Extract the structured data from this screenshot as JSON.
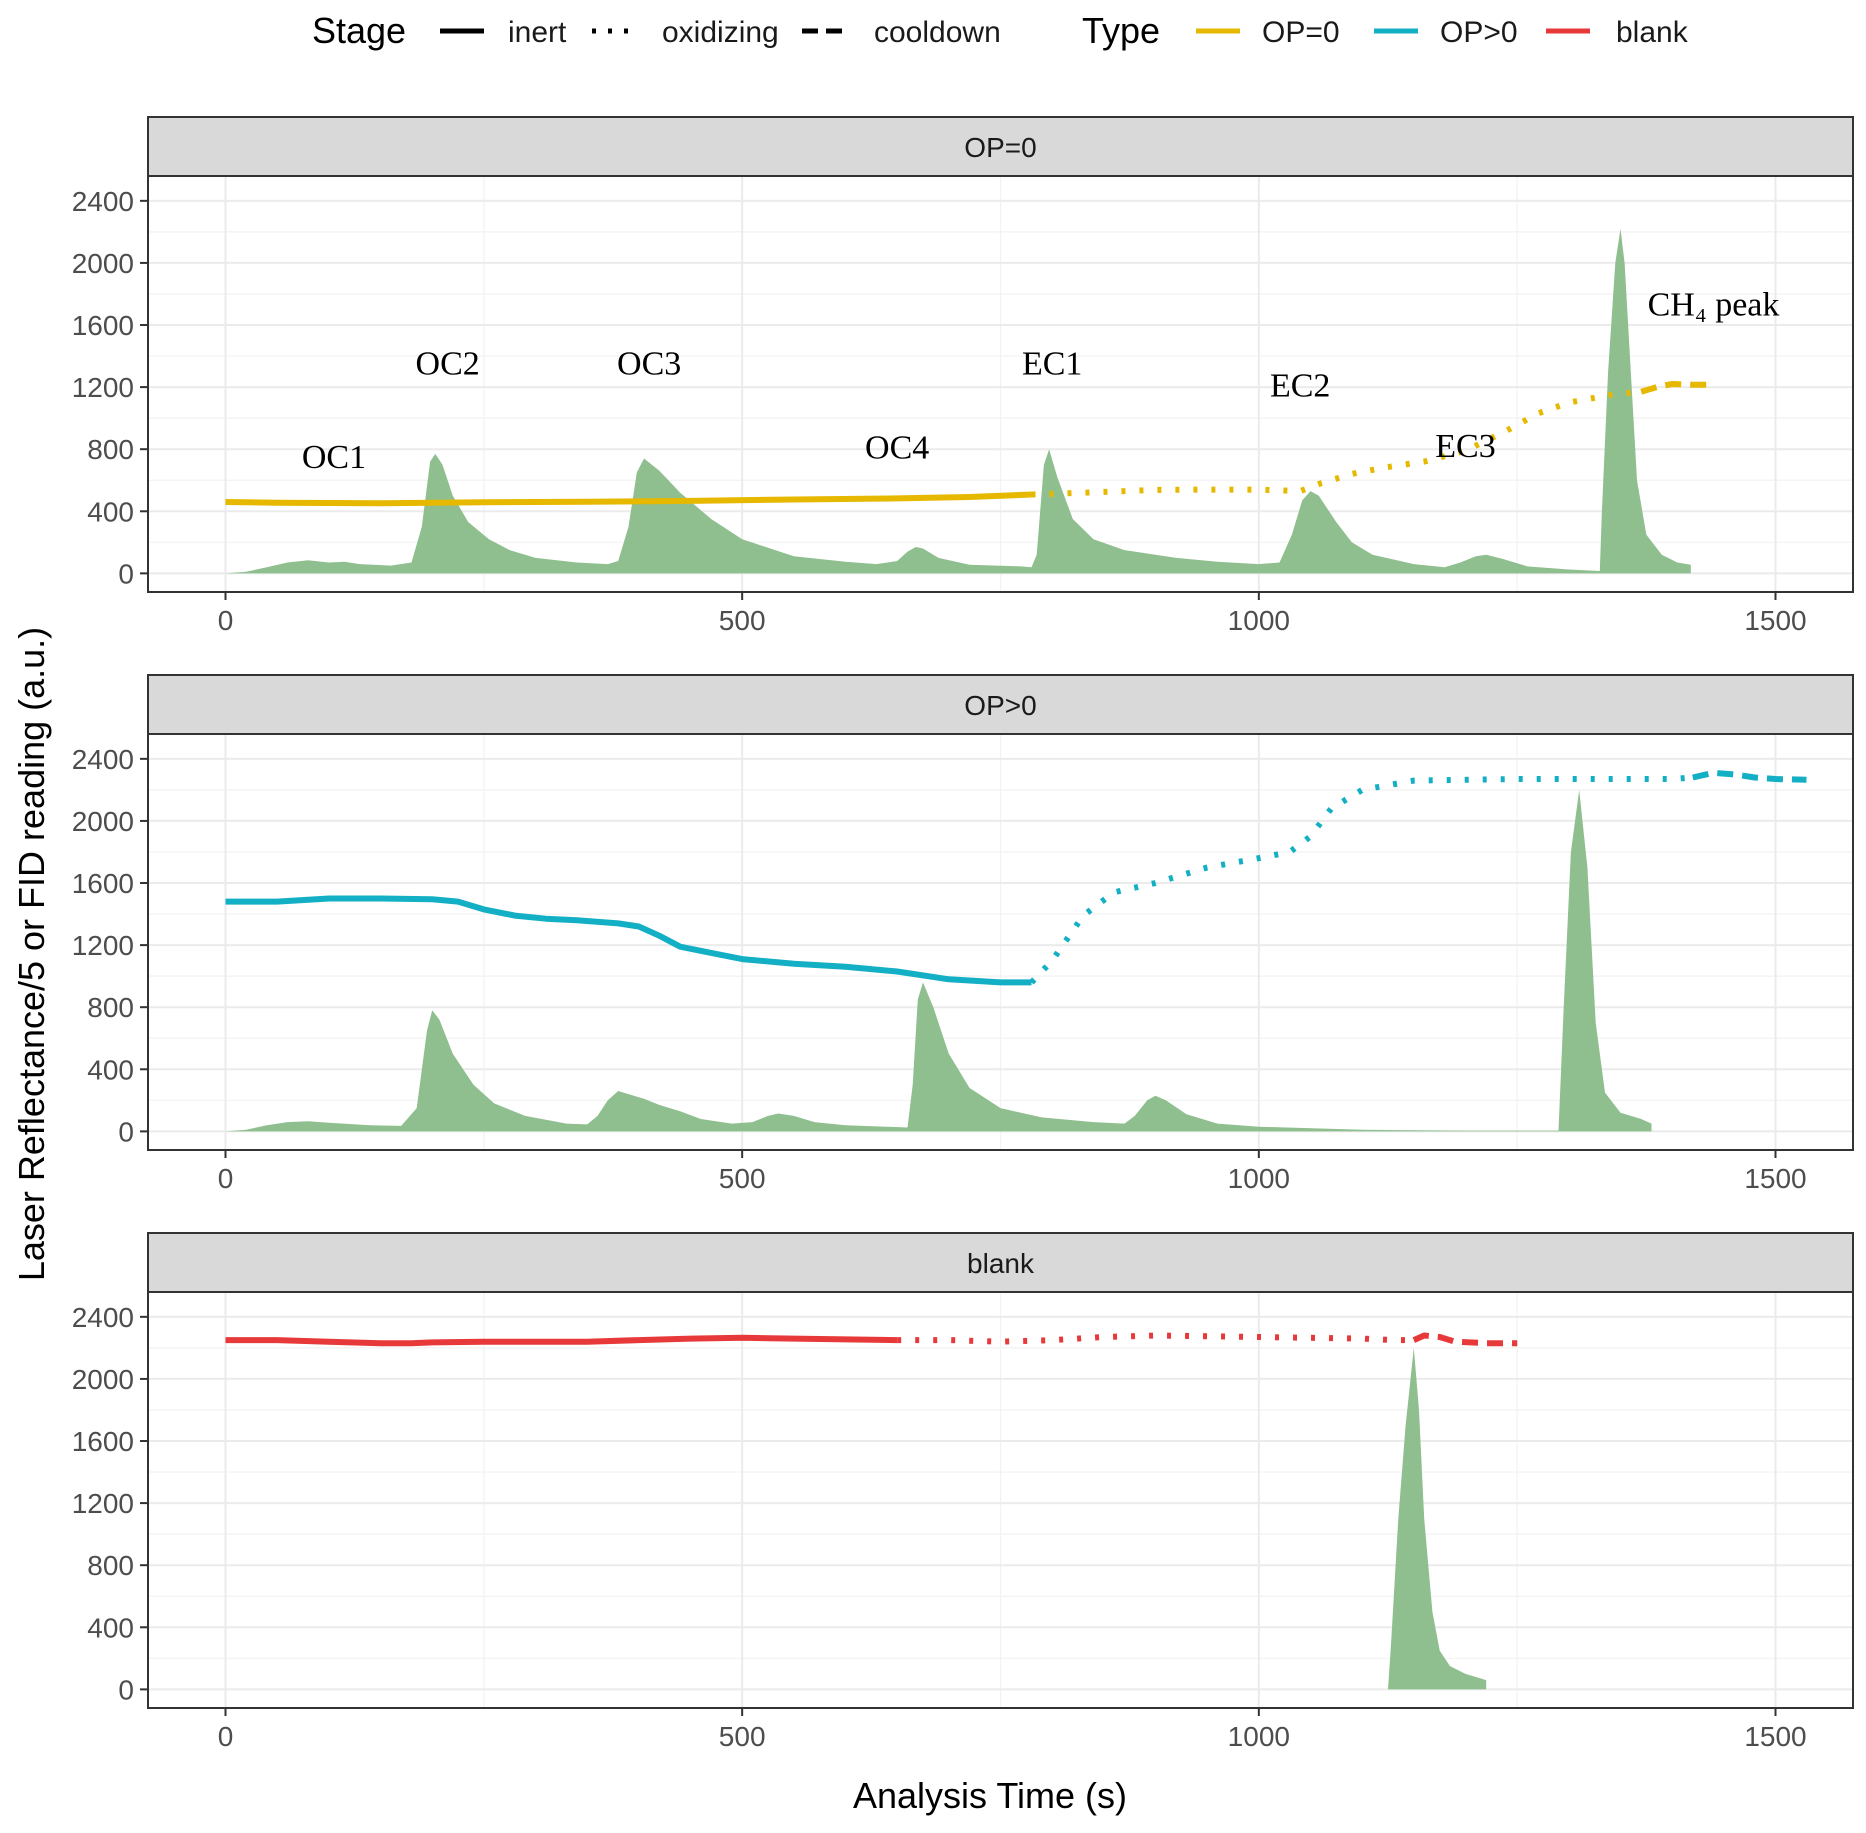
{
  "chart_data": {
    "type": "line",
    "xlabel": "Analysis Time (s)",
    "ylabel": "Laser Reflectance/5 or FID reading (a.u.)",
    "xlim": [
      -75,
      1575
    ],
    "ylim": [
      -120,
      2560
    ],
    "x_ticks": [
      0,
      500,
      1000,
      1500
    ],
    "y_ticks": [
      0,
      400,
      800,
      1200,
      1600,
      2000,
      2400
    ],
    "grid": true,
    "fid_color": "#8FBF8F",
    "legend": {
      "placement": "top",
      "stage": {
        "title": "Stage",
        "items": [
          {
            "label": "inert",
            "dash": "solid"
          },
          {
            "label": "oxidizing",
            "dash": "dotted"
          },
          {
            "label": "cooldown",
            "dash": "dashed"
          }
        ]
      },
      "type": {
        "title": "Type",
        "items": [
          {
            "label": "OP=0",
            "color": "#E6B800"
          },
          {
            "label": "OP>0",
            "color": "#13AFC4"
          },
          {
            "label": "blank",
            "color": "#E8393A"
          }
        ]
      }
    },
    "panels": [
      {
        "strip": "OP=0",
        "color": "#E6B800",
        "laser": {
          "inert": [
            [
              0,
              460
            ],
            [
              50,
              455
            ],
            [
              150,
              452
            ],
            [
              250,
              458
            ],
            [
              350,
              462
            ],
            [
              450,
              467
            ],
            [
              550,
              476
            ],
            [
              650,
              483
            ],
            [
              720,
              492
            ],
            [
              780,
              508
            ]
          ],
          "oxidizing": [
            [
              780,
              508
            ],
            [
              800,
              512
            ],
            [
              850,
              525
            ],
            [
              900,
              538
            ],
            [
              950,
              540
            ],
            [
              1000,
              540
            ],
            [
              1040,
              530
            ],
            [
              1060,
              580
            ],
            [
              1090,
              640
            ],
            [
              1120,
              680
            ],
            [
              1160,
              720
            ],
            [
              1200,
              790
            ],
            [
              1240,
              920
            ],
            [
              1270,
              1030
            ],
            [
              1300,
              1100
            ],
            [
              1340,
              1150
            ],
            [
              1370,
              1170
            ]
          ],
          "cooldown": [
            [
              1370,
              1170
            ],
            [
              1385,
              1200
            ],
            [
              1400,
              1220
            ],
            [
              1420,
              1215
            ],
            [
              1435,
              1215
            ]
          ]
        },
        "fid": [
          [
            0,
            0
          ],
          [
            20,
            10
          ],
          [
            40,
            40
          ],
          [
            60,
            70
          ],
          [
            80,
            85
          ],
          [
            100,
            70
          ],
          [
            115,
            75
          ],
          [
            130,
            60
          ],
          [
            160,
            50
          ],
          [
            180,
            70
          ],
          [
            190,
            300
          ],
          [
            198,
            720
          ],
          [
            203,
            770
          ],
          [
            210,
            700
          ],
          [
            220,
            500
          ],
          [
            235,
            330
          ],
          [
            255,
            220
          ],
          [
            275,
            150
          ],
          [
            300,
            100
          ],
          [
            340,
            70
          ],
          [
            370,
            60
          ],
          [
            380,
            80
          ],
          [
            390,
            300
          ],
          [
            398,
            650
          ],
          [
            405,
            740
          ],
          [
            420,
            660
          ],
          [
            440,
            520
          ],
          [
            470,
            350
          ],
          [
            500,
            220
          ],
          [
            550,
            110
          ],
          [
            600,
            75
          ],
          [
            630,
            60
          ],
          [
            650,
            80
          ],
          [
            660,
            140
          ],
          [
            668,
            170
          ],
          [
            675,
            160
          ],
          [
            690,
            100
          ],
          [
            720,
            55
          ],
          [
            770,
            45
          ],
          [
            780,
            40
          ],
          [
            785,
            120
          ],
          [
            792,
            700
          ],
          [
            797,
            800
          ],
          [
            805,
            620
          ],
          [
            820,
            350
          ],
          [
            840,
            220
          ],
          [
            870,
            150
          ],
          [
            920,
            100
          ],
          [
            960,
            75
          ],
          [
            1000,
            60
          ],
          [
            1020,
            70
          ],
          [
            1032,
            250
          ],
          [
            1042,
            470
          ],
          [
            1050,
            530
          ],
          [
            1058,
            500
          ],
          [
            1075,
            330
          ],
          [
            1090,
            200
          ],
          [
            1110,
            120
          ],
          [
            1150,
            60
          ],
          [
            1180,
            40
          ],
          [
            1195,
            70
          ],
          [
            1210,
            110
          ],
          [
            1220,
            120
          ],
          [
            1235,
            95
          ],
          [
            1260,
            45
          ],
          [
            1300,
            25
          ],
          [
            1330,
            15
          ],
          [
            1332,
            400
          ],
          [
            1338,
            1300
          ],
          [
            1345,
            2000
          ],
          [
            1350,
            2220
          ],
          [
            1354,
            2000
          ],
          [
            1360,
            1300
          ],
          [
            1366,
            600
          ],
          [
            1375,
            250
          ],
          [
            1390,
            120
          ],
          [
            1405,
            70
          ],
          [
            1418,
            55
          ],
          [
            1418,
            0
          ]
        ],
        "annotations": [
          {
            "text": "OC1",
            "x": 105,
            "y": 680
          },
          {
            "text": "OC2",
            "x": 215,
            "y": 1280
          },
          {
            "text": "OC3",
            "x": 410,
            "y": 1280
          },
          {
            "text": "OC4",
            "x": 650,
            "y": 740
          },
          {
            "text": "EC1",
            "x": 800,
            "y": 1280
          },
          {
            "text": "EC2",
            "x": 1040,
            "y": 1140
          },
          {
            "text": "EC3",
            "x": 1200,
            "y": 750
          },
          {
            "text": "CH₄ peak",
            "x": 1440,
            "y": 1660
          }
        ]
      },
      {
        "strip": "OP>0",
        "color": "#13AFC4",
        "laser": {
          "inert": [
            [
              0,
              1480
            ],
            [
              50,
              1480
            ],
            [
              100,
              1500
            ],
            [
              150,
              1500
            ],
            [
              200,
              1495
            ],
            [
              225,
              1480
            ],
            [
              250,
              1430
            ],
            [
              280,
              1390
            ],
            [
              310,
              1370
            ],
            [
              340,
              1360
            ],
            [
              380,
              1340
            ],
            [
              400,
              1320
            ],
            [
              420,
              1260
            ],
            [
              440,
              1190
            ],
            [
              470,
              1150
            ],
            [
              500,
              1110
            ],
            [
              550,
              1080
            ],
            [
              600,
              1060
            ],
            [
              650,
              1030
            ],
            [
              700,
              980
            ],
            [
              750,
              960
            ],
            [
              780,
              960
            ]
          ],
          "oxidizing": [
            [
              780,
              960
            ],
            [
              800,
              1100
            ],
            [
              830,
              1390
            ],
            [
              860,
              1540
            ],
            [
              900,
              1600
            ],
            [
              950,
              1700
            ],
            [
              1000,
              1760
            ],
            [
              1030,
              1800
            ],
            [
              1050,
              1900
            ],
            [
              1070,
              2080
            ],
            [
              1100,
              2200
            ],
            [
              1150,
              2260
            ],
            [
              1250,
              2270
            ],
            [
              1350,
              2270
            ],
            [
              1400,
              2270
            ],
            [
              1420,
              2280
            ]
          ],
          "cooldown": [
            [
              1420,
              2280
            ],
            [
              1440,
              2310
            ],
            [
              1460,
              2300
            ],
            [
              1480,
              2280
            ],
            [
              1500,
              2270
            ],
            [
              1530,
              2265
            ]
          ]
        },
        "fid": [
          [
            0,
            0
          ],
          [
            20,
            10
          ],
          [
            40,
            40
          ],
          [
            60,
            60
          ],
          [
            80,
            65
          ],
          [
            100,
            55
          ],
          [
            140,
            40
          ],
          [
            170,
            35
          ],
          [
            185,
            150
          ],
          [
            195,
            650
          ],
          [
            200,
            780
          ],
          [
            207,
            720
          ],
          [
            220,
            500
          ],
          [
            240,
            300
          ],
          [
            260,
            180
          ],
          [
            290,
            100
          ],
          [
            330,
            50
          ],
          [
            350,
            45
          ],
          [
            360,
            100
          ],
          [
            370,
            200
          ],
          [
            380,
            260
          ],
          [
            390,
            240
          ],
          [
            405,
            210
          ],
          [
            420,
            170
          ],
          [
            440,
            130
          ],
          [
            460,
            80
          ],
          [
            490,
            50
          ],
          [
            510,
            60
          ],
          [
            525,
            100
          ],
          [
            535,
            115
          ],
          [
            550,
            100
          ],
          [
            570,
            60
          ],
          [
            600,
            40
          ],
          [
            640,
            30
          ],
          [
            660,
            25
          ],
          [
            665,
            300
          ],
          [
            670,
            850
          ],
          [
            675,
            960
          ],
          [
            685,
            800
          ],
          [
            700,
            500
          ],
          [
            720,
            280
          ],
          [
            750,
            150
          ],
          [
            790,
            90
          ],
          [
            840,
            60
          ],
          [
            870,
            50
          ],
          [
            880,
            100
          ],
          [
            892,
            200
          ],
          [
            900,
            230
          ],
          [
            910,
            200
          ],
          [
            930,
            110
          ],
          [
            960,
            50
          ],
          [
            1000,
            30
          ],
          [
            1100,
            10
          ],
          [
            1200,
            5
          ],
          [
            1290,
            5
          ],
          [
            1295,
            800
          ],
          [
            1302,
            1800
          ],
          [
            1310,
            2200
          ],
          [
            1318,
            1700
          ],
          [
            1326,
            700
          ],
          [
            1335,
            250
          ],
          [
            1350,
            120
          ],
          [
            1370,
            80
          ],
          [
            1380,
            50
          ],
          [
            1380,
            0
          ]
        ]
      },
      {
        "strip": "blank",
        "color": "#E8393A",
        "laser": {
          "inert": [
            [
              0,
              2250
            ],
            [
              50,
              2250
            ],
            [
              100,
              2240
            ],
            [
              150,
              2230
            ],
            [
              180,
              2230
            ],
            [
              200,
              2235
            ],
            [
              250,
              2240
            ],
            [
              350,
              2240
            ],
            [
              400,
              2250
            ],
            [
              450,
              2260
            ],
            [
              500,
              2265
            ],
            [
              550,
              2260
            ],
            [
              650,
              2250
            ]
          ],
          "oxidizing": [
            [
              650,
              2250
            ],
            [
              700,
              2250
            ],
            [
              750,
              2240
            ],
            [
              800,
              2250
            ],
            [
              850,
              2270
            ],
            [
              900,
              2280
            ],
            [
              950,
              2275
            ],
            [
              1000,
              2270
            ],
            [
              1050,
              2265
            ],
            [
              1100,
              2260
            ],
            [
              1130,
              2250
            ],
            [
              1150,
              2250
            ]
          ],
          "cooldown": [
            [
              1150,
              2250
            ],
            [
              1160,
              2280
            ],
            [
              1175,
              2270
            ],
            [
              1190,
              2240
            ],
            [
              1220,
              2230
            ],
            [
              1250,
              2230
            ]
          ]
        },
        "fid": [
          [
            0,
            0
          ],
          [
            200,
            0
          ],
          [
            400,
            0
          ],
          [
            600,
            0
          ],
          [
            800,
            0
          ],
          [
            1000,
            0
          ],
          [
            1125,
            0
          ],
          [
            1128,
            300
          ],
          [
            1135,
            1100
          ],
          [
            1142,
            1700
          ],
          [
            1150,
            2200
          ],
          [
            1155,
            1800
          ],
          [
            1160,
            1100
          ],
          [
            1168,
            500
          ],
          [
            1175,
            250
          ],
          [
            1185,
            150
          ],
          [
            1200,
            100
          ],
          [
            1220,
            60
          ],
          [
            1220,
            0
          ]
        ]
      }
    ]
  }
}
